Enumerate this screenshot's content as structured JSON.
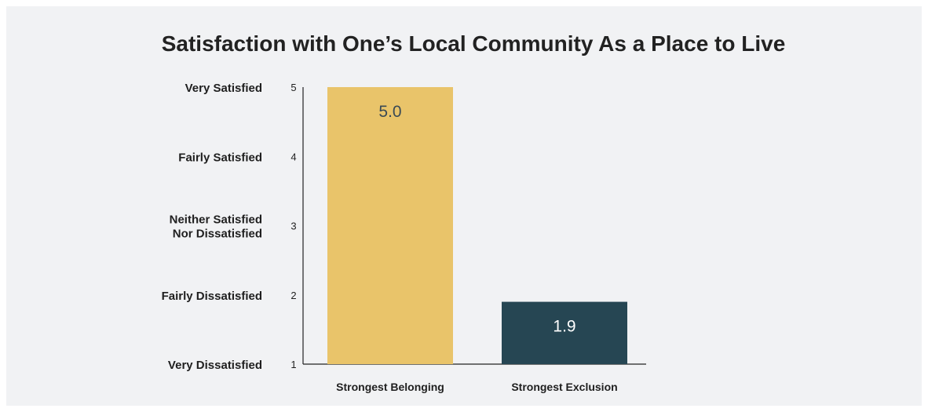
{
  "chart_data": {
    "type": "bar",
    "title": "Satisfaction with One’s Local Community As a Place to Live",
    "categories": [
      "Strongest Belonging",
      "Strongest Exclusion"
    ],
    "values": [
      5.0,
      1.9
    ],
    "value_labels": [
      "5.0",
      "1.9"
    ],
    "bar_colors": [
      "#e9c46a",
      "#264653"
    ],
    "value_label_colors": [
      "#3a4a55",
      "#ffffff"
    ],
    "ylim": [
      1,
      5
    ],
    "y_ticks": [
      1,
      2,
      3,
      4,
      5
    ],
    "y_tick_labels": [
      "1",
      "2",
      "3",
      "4",
      "5"
    ],
    "y_category_labels": [
      [
        "Very Dissatisfied"
      ],
      [
        "Fairly Dissatisfied"
      ],
      [
        "Neither Satisfied",
        "Nor Dissatisfied"
      ],
      [
        "Fairly Satisfied"
      ],
      [
        "Very Satisfied"
      ]
    ],
    "xlabel": "",
    "ylabel": "",
    "grid": false
  }
}
